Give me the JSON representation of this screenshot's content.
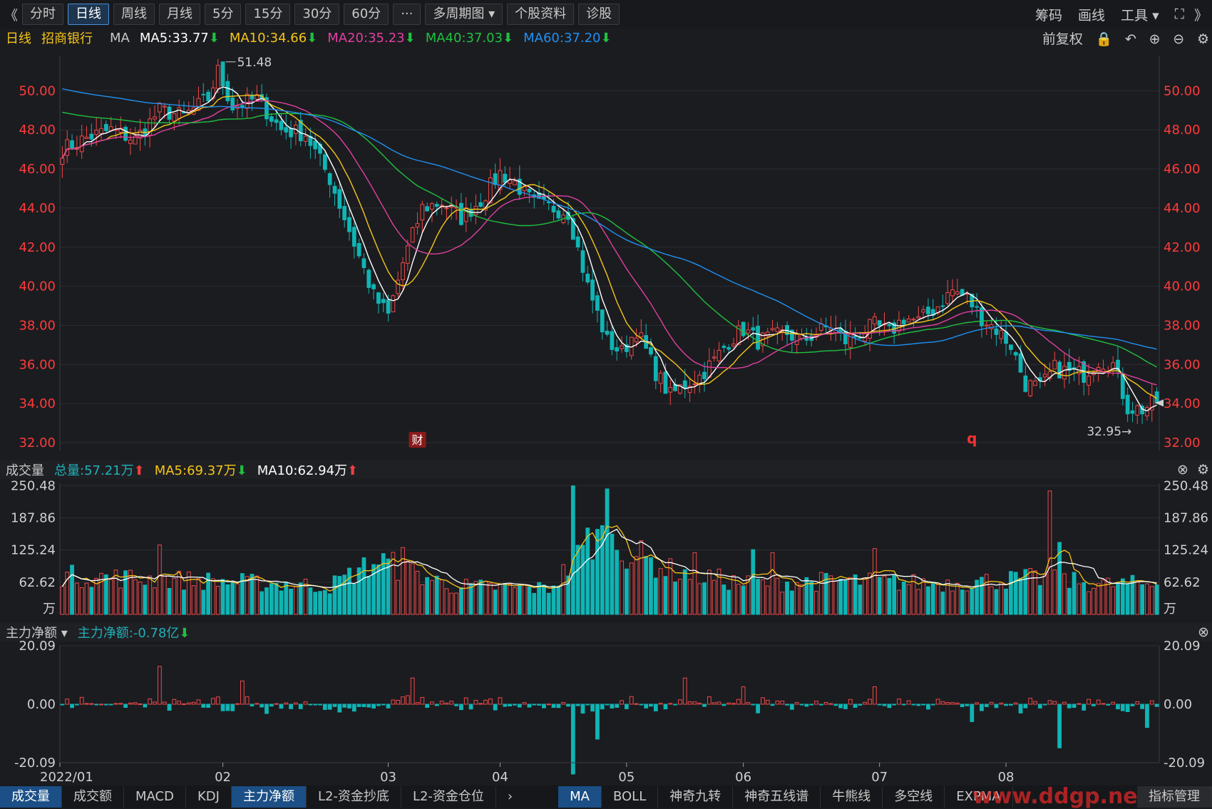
{
  "toolbar": {
    "collapse": "《",
    "periods": [
      "分时",
      "日线",
      "周线",
      "月线",
      "5分",
      "15分",
      "30分",
      "60分"
    ],
    "active_period": 1,
    "more": "···",
    "multi_period": "多周期图",
    "stock_info": "个股资料",
    "diagnose": "诊股",
    "right": [
      "筹码",
      "画线",
      "工具"
    ],
    "expand": "》"
  },
  "mabar": {
    "period": "日线",
    "stock": "招商银行",
    "label": "MA",
    "items": [
      {
        "text": "MA5:33.77",
        "color": "#ffffff",
        "dir": "down"
      },
      {
        "text": "MA10:34.66",
        "color": "#f5c518",
        "dir": "down"
      },
      {
        "text": "MA20:35.23",
        "color": "#e040a0",
        "dir": "down"
      },
      {
        "text": "MA40:37.03",
        "color": "#20c040",
        "dir": "down"
      },
      {
        "text": "MA60:37.20",
        "color": "#2090f0",
        "dir": "down"
      }
    ],
    "adjust": "前复权"
  },
  "volbar": {
    "title": "成交量",
    "items": [
      {
        "text": "总量:57.21万",
        "color": "#20b0b8",
        "dir": "up"
      },
      {
        "text": "MA5:69.37万",
        "color": "#f5c518",
        "dir": "down"
      },
      {
        "text": "MA10:62.94万",
        "color": "#ffffff",
        "dir": "up"
      }
    ]
  },
  "mfbar": {
    "title": "主力净额",
    "items": [
      {
        "text": "主力净额:-0.78亿",
        "color": "#20b0b8",
        "dir": "down"
      }
    ]
  },
  "bottom": {
    "left_tabs": [
      "成交量",
      "成交额",
      "MACD",
      "KDJ",
      "主力净额",
      "L2-资金抄底",
      "L2-资金仓位"
    ],
    "left_active": [
      0,
      4
    ],
    "right_tabs": [
      "MA",
      "BOLL",
      "神奇九转",
      "神奇五线谱",
      "牛熊线",
      "多空线",
      "EXPMA"
    ],
    "right_active": 0,
    "manage": "指标管理",
    "watermark": "www.ddgp.net"
  },
  "colors": {
    "up": "#f04848",
    "down": "#10b4b4",
    "grid": "#2c2d32",
    "axis": "#ff3b3b"
  },
  "chart_data": [
    {
      "type": "candlestick",
      "stock": "招商银行",
      "period": "日线",
      "x_ticks": [
        "2022/01",
        "02",
        "03",
        "04",
        "05",
        "06",
        "07",
        "08"
      ],
      "y_ticks": [
        "50.00",
        "48.00",
        "46.00",
        "44.00",
        "42.00",
        "40.00",
        "38.00",
        "36.00",
        "34.00",
        "32.00"
      ],
      "ylim": [
        31.6,
        51.8
      ],
      "annotations": {
        "high": "51.48",
        "low": "32.95→",
        "markers": [
          "财",
          "q"
        ]
      },
      "ma_legend": [
        "MA5:33.77",
        "MA10:34.66",
        "MA20:35.23",
        "MA40:37.03",
        "MA60:37.20"
      ],
      "anchors": [
        [
          0,
          47.0
        ],
        [
          5,
          47.6
        ],
        [
          10,
          48.0
        ],
        [
          15,
          47.5
        ],
        [
          20,
          49.0
        ],
        [
          25,
          48.7
        ],
        [
          30,
          49.6
        ],
        [
          32,
          51.0
        ],
        [
          35,
          49.2
        ],
        [
          40,
          49.6
        ],
        [
          45,
          48.0
        ],
        [
          50,
          47.8
        ],
        [
          55,
          45.5
        ],
        [
          60,
          42.2
        ],
        [
          64,
          39.5
        ],
        [
          67,
          38.5
        ],
        [
          70,
          41.2
        ],
        [
          74,
          44.0
        ],
        [
          78,
          44.3
        ],
        [
          82,
          43.5
        ],
        [
          86,
          44.4
        ],
        [
          90,
          45.8
        ],
        [
          93,
          45.3
        ],
        [
          97,
          44.2
        ],
        [
          101,
          44.0
        ],
        [
          104,
          43.8
        ],
        [
          108,
          40.0
        ],
        [
          112,
          37.2
        ],
        [
          115,
          36.6
        ],
        [
          118,
          37.8
        ],
        [
          122,
          35.6
        ],
        [
          125,
          34.4
        ],
        [
          128,
          35.0
        ],
        [
          131,
          35.4
        ],
        [
          134,
          36.2
        ],
        [
          137,
          37.2
        ],
        [
          140,
          37.8
        ],
        [
          143,
          37.2
        ],
        [
          146,
          37.4
        ],
        [
          149,
          37.6
        ],
        [
          152,
          37.2
        ],
        [
          155,
          37.6
        ],
        [
          158,
          38.0
        ],
        [
          161,
          37.2
        ],
        [
          164,
          37.6
        ],
        [
          167,
          38.0
        ],
        [
          170,
          37.6
        ],
        [
          173,
          38.4
        ],
        [
          176,
          38.2
        ],
        [
          180,
          39.0
        ],
        [
          183,
          39.8
        ],
        [
          186,
          39.4
        ],
        [
          189,
          38.4
        ],
        [
          192,
          37.8
        ],
        [
          195,
          37.0
        ],
        [
          198,
          35.0
        ],
        [
          201,
          34.8
        ],
        [
          204,
          35.8
        ],
        [
          207,
          35.6
        ],
        [
          210,
          35.5
        ],
        [
          213,
          36.2
        ],
        [
          216,
          36.0
        ],
        [
          219,
          33.8
        ],
        [
          222,
          33.7
        ],
        [
          225,
          34.1
        ]
      ],
      "ma_first": {
        "MA40": 48.9,
        "MA60": 50.1
      }
    },
    {
      "type": "bar",
      "name": "成交量",
      "unit": "万",
      "y_ticks": [
        "250.48",
        "187.86",
        "125.24",
        "62.62",
        "万"
      ],
      "ylim": [
        0,
        255
      ],
      "spikes": [
        [
          20,
          135
        ],
        [
          70,
          130
        ],
        [
          105,
          250
        ],
        [
          108,
          168
        ],
        [
          112,
          244
        ],
        [
          130,
          120
        ],
        [
          142,
          126
        ],
        [
          146,
          120
        ],
        [
          167,
          128
        ],
        [
          203,
          240
        ],
        [
          205,
          140
        ]
      ],
      "base": [
        [
          0,
          75
        ],
        [
          30,
          65
        ],
        [
          55,
          55
        ],
        [
          65,
          105
        ],
        [
          80,
          55
        ],
        [
          100,
          50
        ],
        [
          110,
          150
        ],
        [
          125,
          85
        ],
        [
          140,
          60
        ],
        [
          160,
          65
        ],
        [
          180,
          60
        ],
        [
          200,
          70
        ],
        [
          215,
          58
        ],
        [
          225,
          60
        ]
      ],
      "last": 57.21
    },
    {
      "type": "bar",
      "name": "主力净额",
      "unit": "亿",
      "y_ticks": [
        "20.09",
        "0.00",
        "-20.09"
      ],
      "ylim": [
        -20.09,
        20.09
      ],
      "spikes": [
        [
          20,
          13
        ],
        [
          37,
          8
        ],
        [
          72,
          9
        ],
        [
          105,
          -24
        ],
        [
          110,
          -12
        ],
        [
          128,
          9
        ],
        [
          140,
          6
        ],
        [
          167,
          6
        ],
        [
          187,
          -6
        ],
        [
          205,
          -15
        ],
        [
          223,
          -8
        ]
      ],
      "last": -0.78
    }
  ]
}
